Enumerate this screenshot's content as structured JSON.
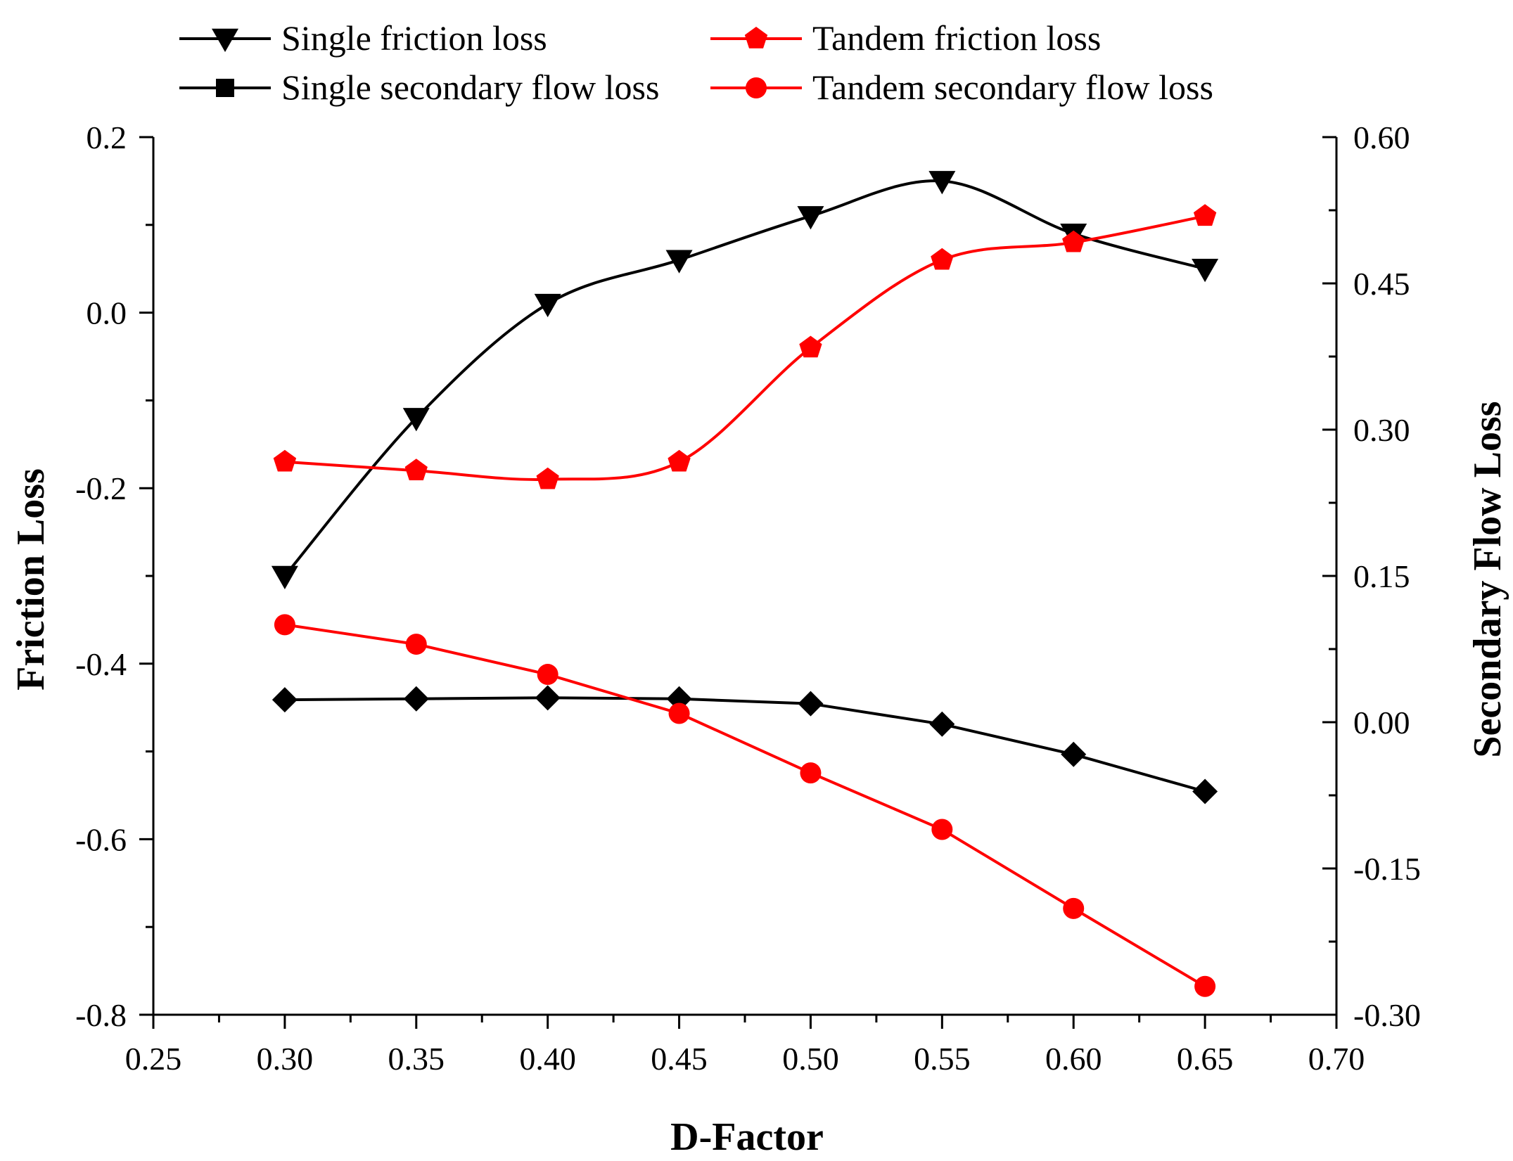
{
  "chart_data": {
    "type": "line",
    "title": "",
    "xlabel": "D-Factor",
    "ylabel_left": "Friction Loss",
    "ylabel_right": "Secondary Flow Loss",
    "xlim": [
      0.25,
      0.7
    ],
    "ylim_left": [
      -0.8,
      0.2
    ],
    "ylim_right": [
      -0.3,
      0.6
    ],
    "x_ticks": [
      "0.25",
      "0.30",
      "0.35",
      "0.40",
      "0.45",
      "0.50",
      "0.55",
      "0.60",
      "0.65",
      "0.70"
    ],
    "y_left_ticks": [
      "0.2",
      "0.0",
      "-0.2",
      "-0.4",
      "-0.6",
      "-0.8"
    ],
    "y_right_ticks": [
      "0.60",
      "0.45",
      "0.30",
      "0.15",
      "0.00",
      "-0.15",
      "-0.30"
    ],
    "x": [
      0.3,
      0.35,
      0.4,
      0.45,
      0.5,
      0.55,
      0.6,
      0.65
    ],
    "legend_position": "top",
    "series": [
      {
        "name": "Single friction loss",
        "axis": "left",
        "color": "#000000",
        "marker": "triangle-down",
        "smooth": true,
        "values": [
          -0.3,
          -0.12,
          0.01,
          0.06,
          0.11,
          0.15,
          0.09,
          0.05
        ]
      },
      {
        "name": "Tandem friction loss",
        "axis": "left",
        "color": "#ff0000",
        "marker": "pentagon",
        "smooth": true,
        "values": [
          -0.17,
          -0.18,
          -0.19,
          -0.17,
          -0.04,
          0.06,
          0.08,
          0.11
        ]
      },
      {
        "name": "Single secondary flow loss",
        "axis": "right",
        "color": "#000000",
        "marker": "diamond",
        "smooth": false,
        "values": [
          0.023,
          0.024,
          0.025,
          0.024,
          0.019,
          -0.002,
          -0.033,
          -0.071
        ]
      },
      {
        "name": "Tandem secondary flow loss",
        "axis": "right",
        "color": "#ff0000",
        "marker": "circle",
        "smooth": false,
        "values": [
          0.1,
          0.08,
          0.049,
          0.009,
          -0.052,
          -0.11,
          -0.191,
          -0.271
        ]
      }
    ]
  }
}
